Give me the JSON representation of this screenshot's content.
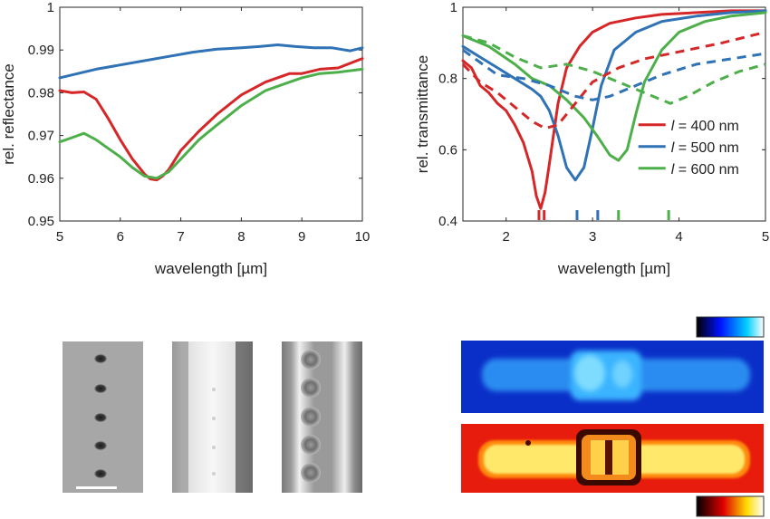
{
  "chart_data": [
    {
      "type": "line",
      "xlabel": "wavelength [µm]",
      "ylabel": "rel. reflectance",
      "xlim": [
        5,
        10
      ],
      "ylim": [
        0.95,
        1.0
      ],
      "xticks": [
        "5",
        "6",
        "7",
        "8",
        "9",
        "10"
      ],
      "yticks": [
        "0.95",
        "0.96",
        "0.97",
        "0.98",
        "0.99",
        "1"
      ],
      "grid": false,
      "series": [
        {
          "color": "#d62728",
          "style": "solid",
          "x": [
            5.0,
            5.2,
            5.4,
            5.6,
            5.8,
            6.0,
            6.2,
            6.4,
            6.5,
            6.6,
            6.7,
            6.8,
            7.0,
            7.3,
            7.6,
            8.0,
            8.4,
            8.8,
            9.0,
            9.3,
            9.6,
            10.0
          ],
          "y": [
            0.9805,
            0.98,
            0.9802,
            0.9785,
            0.974,
            0.969,
            0.9645,
            0.961,
            0.9598,
            0.9596,
            0.9605,
            0.962,
            0.9665,
            0.971,
            0.975,
            0.9795,
            0.9825,
            0.9845,
            0.9845,
            0.9855,
            0.9858,
            0.988
          ]
        },
        {
          "color": "#2f72b5",
          "style": "solid",
          "x": [
            5.0,
            5.3,
            5.6,
            6.0,
            6.4,
            6.8,
            7.2,
            7.6,
            8.0,
            8.3,
            8.6,
            8.9,
            9.2,
            9.5,
            9.8,
            10.0
          ],
          "y": [
            0.9835,
            0.9845,
            0.9855,
            0.9865,
            0.9875,
            0.9885,
            0.9895,
            0.9902,
            0.9905,
            0.9908,
            0.9912,
            0.9908,
            0.9905,
            0.9905,
            0.9898,
            0.9905
          ]
        },
        {
          "color": "#4daf4a",
          "style": "solid",
          "x": [
            5.0,
            5.2,
            5.4,
            5.6,
            5.8,
            6.0,
            6.2,
            6.4,
            6.6,
            6.8,
            7.0,
            7.3,
            7.6,
            8.0,
            8.4,
            8.8,
            9.0,
            9.3,
            9.6,
            10.0
          ],
          "y": [
            0.9685,
            0.9695,
            0.9705,
            0.969,
            0.967,
            0.965,
            0.9625,
            0.9605,
            0.96,
            0.9615,
            0.9645,
            0.969,
            0.9725,
            0.977,
            0.9805,
            0.9825,
            0.9835,
            0.9845,
            0.9848,
            0.9855
          ]
        }
      ]
    },
    {
      "type": "line",
      "xlabel": "wavelength [µm]",
      "ylabel": "rel. transmittance",
      "xlim": [
        1.5,
        5
      ],
      "ylim": [
        0.4,
        1.0
      ],
      "xticks": [
        "2",
        "3",
        "4",
        "5"
      ],
      "yticks": [
        "0.4",
        "0.6",
        "0.8",
        "1"
      ],
      "grid": false,
      "legend": {
        "placement": "right",
        "entries": [
          {
            "var": "l",
            "text": " = 400 nm",
            "color": "#d62728"
          },
          {
            "var": "l",
            "text": " = 500 nm",
            "color": "#2f72b5"
          },
          {
            "var": "l",
            "text": " = 600 nm",
            "color": "#4daf4a"
          }
        ]
      },
      "series": [
        {
          "color": "#d62728",
          "style": "solid",
          "x": [
            1.5,
            1.6,
            1.7,
            1.8,
            1.9,
            2.0,
            2.1,
            2.2,
            2.3,
            2.35,
            2.4,
            2.45,
            2.5,
            2.6,
            2.7,
            2.85,
            3.0,
            3.2,
            3.5,
            3.8,
            4.2,
            4.6,
            5.0
          ],
          "y": [
            0.85,
            0.83,
            0.78,
            0.76,
            0.73,
            0.71,
            0.67,
            0.62,
            0.54,
            0.47,
            0.435,
            0.48,
            0.56,
            0.73,
            0.83,
            0.89,
            0.93,
            0.955,
            0.97,
            0.98,
            0.985,
            0.99,
            0.99
          ]
        },
        {
          "color": "#2f72b5",
          "style": "solid",
          "x": [
            1.5,
            1.7,
            1.9,
            2.1,
            2.3,
            2.4,
            2.5,
            2.6,
            2.7,
            2.8,
            2.9,
            3.0,
            3.1,
            3.25,
            3.5,
            3.8,
            4.2,
            4.6,
            5.0
          ],
          "y": [
            0.89,
            0.86,
            0.83,
            0.8,
            0.77,
            0.75,
            0.71,
            0.64,
            0.55,
            0.515,
            0.55,
            0.66,
            0.78,
            0.88,
            0.93,
            0.96,
            0.975,
            0.985,
            0.99
          ]
        },
        {
          "color": "#4daf4a",
          "style": "solid",
          "x": [
            1.5,
            1.8,
            2.1,
            2.3,
            2.5,
            2.7,
            2.9,
            3.05,
            3.2,
            3.3,
            3.4,
            3.5,
            3.6,
            3.8,
            4.0,
            4.3,
            4.6,
            5.0
          ],
          "y": [
            0.92,
            0.89,
            0.84,
            0.8,
            0.78,
            0.74,
            0.69,
            0.64,
            0.585,
            0.57,
            0.6,
            0.7,
            0.79,
            0.88,
            0.93,
            0.96,
            0.975,
            0.985
          ]
        },
        {
          "color": "#d62728",
          "style": "dashed",
          "x": [
            1.5,
            1.7,
            1.9,
            2.1,
            2.3,
            2.45,
            2.6,
            2.8,
            3.0,
            3.3,
            3.6,
            4.0,
            4.5,
            5.0
          ],
          "y": [
            0.84,
            0.79,
            0.76,
            0.72,
            0.68,
            0.66,
            0.67,
            0.73,
            0.79,
            0.83,
            0.855,
            0.875,
            0.9,
            0.93
          ]
        },
        {
          "color": "#2f72b5",
          "style": "dashed",
          "x": [
            1.5,
            1.9,
            2.2,
            2.5,
            2.8,
            3.0,
            3.2,
            3.5,
            3.8,
            4.2,
            4.6,
            5.0
          ],
          "y": [
            0.88,
            0.81,
            0.8,
            0.78,
            0.75,
            0.74,
            0.75,
            0.78,
            0.81,
            0.84,
            0.855,
            0.87
          ]
        },
        {
          "color": "#4daf4a",
          "style": "dashed",
          "x": [
            1.5,
            1.8,
            2.1,
            2.4,
            2.7,
            3.0,
            3.3,
            3.6,
            3.8,
            3.9,
            4.1,
            4.4,
            4.7,
            5.0
          ],
          "y": [
            0.92,
            0.9,
            0.86,
            0.83,
            0.84,
            0.82,
            0.79,
            0.76,
            0.74,
            0.73,
            0.75,
            0.79,
            0.82,
            0.84
          ]
        }
      ],
      "markers": [
        {
          "x": 2.38,
          "color": "#d62728"
        },
        {
          "x": 2.44,
          "color": "#d62728"
        },
        {
          "x": 2.82,
          "color": "#2f72b5"
        },
        {
          "x": 3.06,
          "color": "#2f72b5"
        },
        {
          "x": 3.3,
          "color": "#4daf4a"
        },
        {
          "x": 3.88,
          "color": "#4daf4a"
        }
      ]
    }
  ],
  "images": {
    "micrographs": [
      "grayscale-dark-dots",
      "grayscale-bright-strip",
      "grayscale-bead-chain"
    ],
    "maps": [
      {
        "colormap": "blue-to-white",
        "colors": [
          "#000000",
          "#0000ff",
          "#00ccff",
          "#ffffff"
        ]
      },
      {
        "colormap": "hot",
        "colors": [
          "#000000",
          "#ff0000",
          "#ffff00",
          "#ffffff"
        ]
      }
    ]
  }
}
